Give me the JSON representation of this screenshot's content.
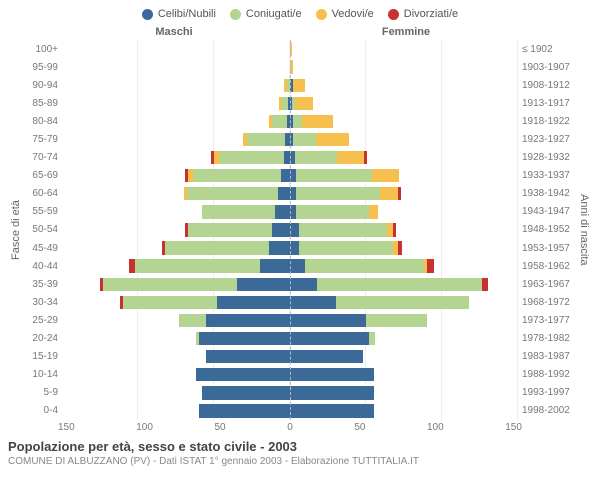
{
  "legend": [
    {
      "label": "Celibi/Nubili",
      "color": "#3b6a99"
    },
    {
      "label": "Coniugati/e",
      "color": "#b4d491"
    },
    {
      "label": "Vedovi/e",
      "color": "#f5c04e"
    },
    {
      "label": "Divorziati/e",
      "color": "#c7312f"
    }
  ],
  "axis_titles": {
    "left": "Fasce di età",
    "right": "Anni di nascita"
  },
  "side_headers": {
    "male": "Maschi",
    "female": "Femmine"
  },
  "x_ticks": [
    "150",
    "100",
    "50",
    "0",
    "50",
    "100",
    "150"
  ],
  "x_max": 150,
  "age_labels": [
    "100+",
    "95-99",
    "90-94",
    "85-89",
    "80-84",
    "75-79",
    "70-74",
    "65-69",
    "60-64",
    "55-59",
    "50-54",
    "45-49",
    "40-44",
    "35-39",
    "30-34",
    "25-29",
    "20-24",
    "15-19",
    "10-14",
    "5-9",
    "0-4"
  ],
  "birth_labels": [
    "≤ 1902",
    "1903-1907",
    "1908-1912",
    "1913-1917",
    "1918-1922",
    "1923-1927",
    "1928-1932",
    "1933-1937",
    "1938-1942",
    "1943-1947",
    "1948-1952",
    "1953-1957",
    "1958-1962",
    "1963-1967",
    "1968-1972",
    "1973-1977",
    "1978-1982",
    "1983-1987",
    "1988-1992",
    "1993-1997",
    "1998-2002"
  ],
  "colors": {
    "single": "#3b6a99",
    "married": "#b4d491",
    "widowed": "#f5c04e",
    "divorced": "#c7312f",
    "grid": "#eeeeee",
    "center_line": "#bbbbbb",
    "background": "#ffffff"
  },
  "rows": [
    {
      "m": {
        "single": 0,
        "married": 0,
        "widowed": 0,
        "divorced": 0
      },
      "f": {
        "single": 0,
        "married": 0,
        "widowed": 1,
        "divorced": 0
      }
    },
    {
      "m": {
        "single": 0,
        "married": 0,
        "widowed": 0,
        "divorced": 0
      },
      "f": {
        "single": 0,
        "married": 0,
        "widowed": 2,
        "divorced": 0
      }
    },
    {
      "m": {
        "single": 0,
        "married": 2,
        "widowed": 2,
        "divorced": 0
      },
      "f": {
        "single": 2,
        "married": 0,
        "widowed": 8,
        "divorced": 0
      }
    },
    {
      "m": {
        "single": 1,
        "married": 4,
        "widowed": 2,
        "divorced": 0
      },
      "f": {
        "single": 1,
        "married": 2,
        "widowed": 12,
        "divorced": 0
      }
    },
    {
      "m": {
        "single": 2,
        "married": 10,
        "widowed": 2,
        "divorced": 0
      },
      "f": {
        "single": 2,
        "married": 6,
        "widowed": 20,
        "divorced": 0
      }
    },
    {
      "m": {
        "single": 3,
        "married": 25,
        "widowed": 3,
        "divorced": 0
      },
      "f": {
        "single": 2,
        "married": 15,
        "widowed": 22,
        "divorced": 0
      }
    },
    {
      "m": {
        "single": 4,
        "married": 42,
        "widowed": 4,
        "divorced": 2
      },
      "f": {
        "single": 3,
        "married": 28,
        "widowed": 18,
        "divorced": 2
      }
    },
    {
      "m": {
        "single": 6,
        "married": 58,
        "widowed": 3,
        "divorced": 2
      },
      "f": {
        "single": 4,
        "married": 50,
        "widowed": 18,
        "divorced": 0
      }
    },
    {
      "m": {
        "single": 8,
        "married": 60,
        "widowed": 2,
        "divorced": 0
      },
      "f": {
        "single": 4,
        "married": 55,
        "widowed": 12,
        "divorced": 2
      }
    },
    {
      "m": {
        "single": 10,
        "married": 48,
        "widowed": 0,
        "divorced": 0
      },
      "f": {
        "single": 4,
        "married": 48,
        "widowed": 6,
        "divorced": 0
      }
    },
    {
      "m": {
        "single": 12,
        "married": 55,
        "widowed": 0,
        "divorced": 2
      },
      "f": {
        "single": 6,
        "married": 58,
        "widowed": 4,
        "divorced": 2
      }
    },
    {
      "m": {
        "single": 14,
        "married": 68,
        "widowed": 0,
        "divorced": 2
      },
      "f": {
        "single": 6,
        "married": 62,
        "widowed": 3,
        "divorced": 3
      }
    },
    {
      "m": {
        "single": 20,
        "married": 82,
        "widowed": 0,
        "divorced": 4
      },
      "f": {
        "single": 10,
        "married": 78,
        "widowed": 2,
        "divorced": 5
      }
    },
    {
      "m": {
        "single": 35,
        "married": 88,
        "widowed": 0,
        "divorced": 2
      },
      "f": {
        "single": 18,
        "married": 108,
        "widowed": 0,
        "divorced": 4
      }
    },
    {
      "m": {
        "single": 48,
        "married": 62,
        "widowed": 0,
        "divorced": 2
      },
      "f": {
        "single": 30,
        "married": 88,
        "widowed": 0,
        "divorced": 0
      }
    },
    {
      "m": {
        "single": 55,
        "married": 18,
        "widowed": 0,
        "divorced": 0
      },
      "f": {
        "single": 50,
        "married": 40,
        "widowed": 0,
        "divorced": 0
      }
    },
    {
      "m": {
        "single": 60,
        "married": 2,
        "widowed": 0,
        "divorced": 0
      },
      "f": {
        "single": 52,
        "married": 4,
        "widowed": 0,
        "divorced": 0
      }
    },
    {
      "m": {
        "single": 55,
        "married": 0,
        "widowed": 0,
        "divorced": 0
      },
      "f": {
        "single": 48,
        "married": 0,
        "widowed": 0,
        "divorced": 0
      }
    },
    {
      "m": {
        "single": 62,
        "married": 0,
        "widowed": 0,
        "divorced": 0
      },
      "f": {
        "single": 55,
        "married": 0,
        "widowed": 0,
        "divorced": 0
      }
    },
    {
      "m": {
        "single": 58,
        "married": 0,
        "widowed": 0,
        "divorced": 0
      },
      "f": {
        "single": 55,
        "married": 0,
        "widowed": 0,
        "divorced": 0
      }
    },
    {
      "m": {
        "single": 60,
        "married": 0,
        "widowed": 0,
        "divorced": 0
      },
      "f": {
        "single": 55,
        "married": 0,
        "widowed": 0,
        "divorced": 0
      }
    }
  ],
  "footer": {
    "title": "Popolazione per età, sesso e stato civile - 2003",
    "subtitle": "COMUNE DI ALBUZZANO (PV) - Dati ISTAT 1° gennaio 2003 - Elaborazione TUTTITALIA.IT"
  }
}
